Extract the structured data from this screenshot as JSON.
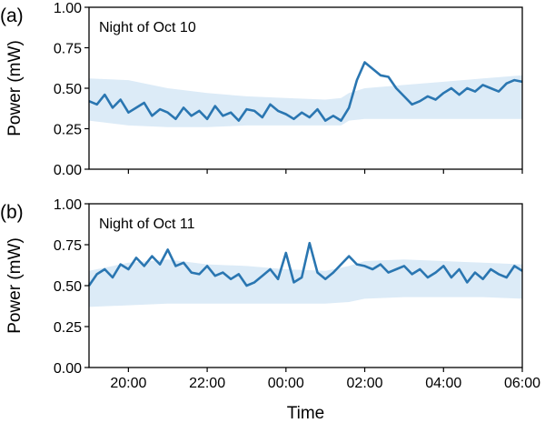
{
  "chart_data": [
    {
      "type": "line",
      "panel_label": "(a)",
      "annotation": "Night of Oct 10",
      "ylabel": "Power (mW)",
      "xlabel": "",
      "ylim": [
        0,
        1
      ],
      "yticks": [
        "0.00",
        "0.25",
        "0.50",
        "0.75",
        "1.00"
      ],
      "xlim": [
        19,
        30
      ],
      "xticks": [
        20,
        22,
        24,
        26,
        28,
        30
      ],
      "xtick_labels": [
        "20:00",
        "22:00",
        "00:00",
        "02:00",
        "04:00",
        "06:00"
      ],
      "grid": false,
      "series": [
        {
          "kind": "line",
          "color": "#2a76b1",
          "x": [
            19.0,
            19.2,
            19.4,
            19.6,
            19.8,
            20.0,
            20.2,
            20.4,
            20.6,
            20.8,
            21.0,
            21.2,
            21.4,
            21.6,
            21.8,
            22.0,
            22.2,
            22.4,
            22.6,
            22.8,
            23.0,
            23.2,
            23.4,
            23.6,
            23.8,
            24.0,
            24.2,
            24.4,
            24.6,
            24.8,
            25.0,
            25.2,
            25.4,
            25.6,
            25.8,
            26.0,
            26.2,
            26.4,
            26.6,
            26.8,
            27.0,
            27.2,
            27.4,
            27.6,
            27.8,
            28.0,
            28.2,
            28.4,
            28.6,
            28.8,
            29.0,
            29.2,
            29.4,
            29.6,
            29.8,
            30.0
          ],
          "y": [
            0.42,
            0.4,
            0.46,
            0.38,
            0.43,
            0.35,
            0.38,
            0.41,
            0.33,
            0.37,
            0.35,
            0.31,
            0.38,
            0.33,
            0.36,
            0.31,
            0.39,
            0.33,
            0.35,
            0.3,
            0.37,
            0.36,
            0.32,
            0.4,
            0.36,
            0.34,
            0.31,
            0.35,
            0.32,
            0.37,
            0.3,
            0.33,
            0.3,
            0.38,
            0.55,
            0.66,
            0.62,
            0.58,
            0.57,
            0.5,
            0.45,
            0.4,
            0.42,
            0.45,
            0.43,
            0.47,
            0.5,
            0.46,
            0.5,
            0.48,
            0.52,
            0.5,
            0.48,
            0.53,
            0.55,
            0.54
          ]
        },
        {
          "kind": "band",
          "color": "#dcebf7",
          "x": [
            19.0,
            20.0,
            21.0,
            22.0,
            23.0,
            24.0,
            25.0,
            25.4,
            25.6,
            26.0,
            27.0,
            28.0,
            29.0,
            30.0
          ],
          "lower": [
            0.3,
            0.27,
            0.26,
            0.26,
            0.27,
            0.27,
            0.27,
            0.27,
            0.3,
            0.31,
            0.31,
            0.31,
            0.31,
            0.31
          ],
          "upper": [
            0.56,
            0.55,
            0.5,
            0.47,
            0.45,
            0.44,
            0.43,
            0.44,
            0.47,
            0.5,
            0.52,
            0.54,
            0.56,
            0.58
          ]
        }
      ]
    },
    {
      "type": "line",
      "panel_label": "(b)",
      "annotation": "Night of Oct 11",
      "ylabel": "Power (mW)",
      "xlabel": "Time",
      "ylim": [
        0,
        1
      ],
      "yticks": [
        "0.00",
        "0.25",
        "0.50",
        "0.75",
        "1.00"
      ],
      "xlim": [
        19,
        30
      ],
      "xticks": [
        20,
        22,
        24,
        26,
        28,
        30
      ],
      "xtick_labels": [
        "20:00",
        "22:00",
        "00:00",
        "02:00",
        "04:00",
        "06:00"
      ],
      "grid": false,
      "series": [
        {
          "kind": "line",
          "color": "#2a76b1",
          "x": [
            19.0,
            19.2,
            19.4,
            19.6,
            19.8,
            20.0,
            20.2,
            20.4,
            20.6,
            20.8,
            21.0,
            21.2,
            21.4,
            21.6,
            21.8,
            22.0,
            22.2,
            22.4,
            22.6,
            22.8,
            23.0,
            23.2,
            23.4,
            23.6,
            23.8,
            24.0,
            24.2,
            24.4,
            24.6,
            24.8,
            25.0,
            25.2,
            25.4,
            25.6,
            25.8,
            26.0,
            26.2,
            26.4,
            26.6,
            26.8,
            27.0,
            27.2,
            27.4,
            27.6,
            27.8,
            28.0,
            28.2,
            28.4,
            28.6,
            28.8,
            29.0,
            29.2,
            29.4,
            29.6,
            29.8,
            30.0
          ],
          "y": [
            0.5,
            0.57,
            0.6,
            0.55,
            0.63,
            0.6,
            0.67,
            0.62,
            0.68,
            0.63,
            0.72,
            0.62,
            0.64,
            0.58,
            0.57,
            0.62,
            0.56,
            0.58,
            0.54,
            0.57,
            0.5,
            0.52,
            0.56,
            0.6,
            0.54,
            0.7,
            0.52,
            0.55,
            0.76,
            0.58,
            0.54,
            0.58,
            0.63,
            0.68,
            0.63,
            0.62,
            0.6,
            0.63,
            0.58,
            0.6,
            0.62,
            0.57,
            0.6,
            0.55,
            0.58,
            0.62,
            0.55,
            0.6,
            0.52,
            0.58,
            0.54,
            0.6,
            0.57,
            0.55,
            0.62,
            0.59
          ]
        },
        {
          "kind": "band",
          "color": "#dcebf7",
          "x": [
            19.0,
            20.0,
            21.0,
            22.0,
            23.0,
            24.0,
            25.0,
            25.6,
            26.0,
            27.0,
            28.0,
            29.0,
            30.0
          ],
          "lower": [
            0.37,
            0.38,
            0.39,
            0.39,
            0.39,
            0.39,
            0.39,
            0.4,
            0.42,
            0.43,
            0.43,
            0.43,
            0.42
          ],
          "upper": [
            0.59,
            0.64,
            0.66,
            0.63,
            0.62,
            0.6,
            0.59,
            0.62,
            0.65,
            0.66,
            0.65,
            0.64,
            0.63
          ]
        }
      ]
    }
  ]
}
